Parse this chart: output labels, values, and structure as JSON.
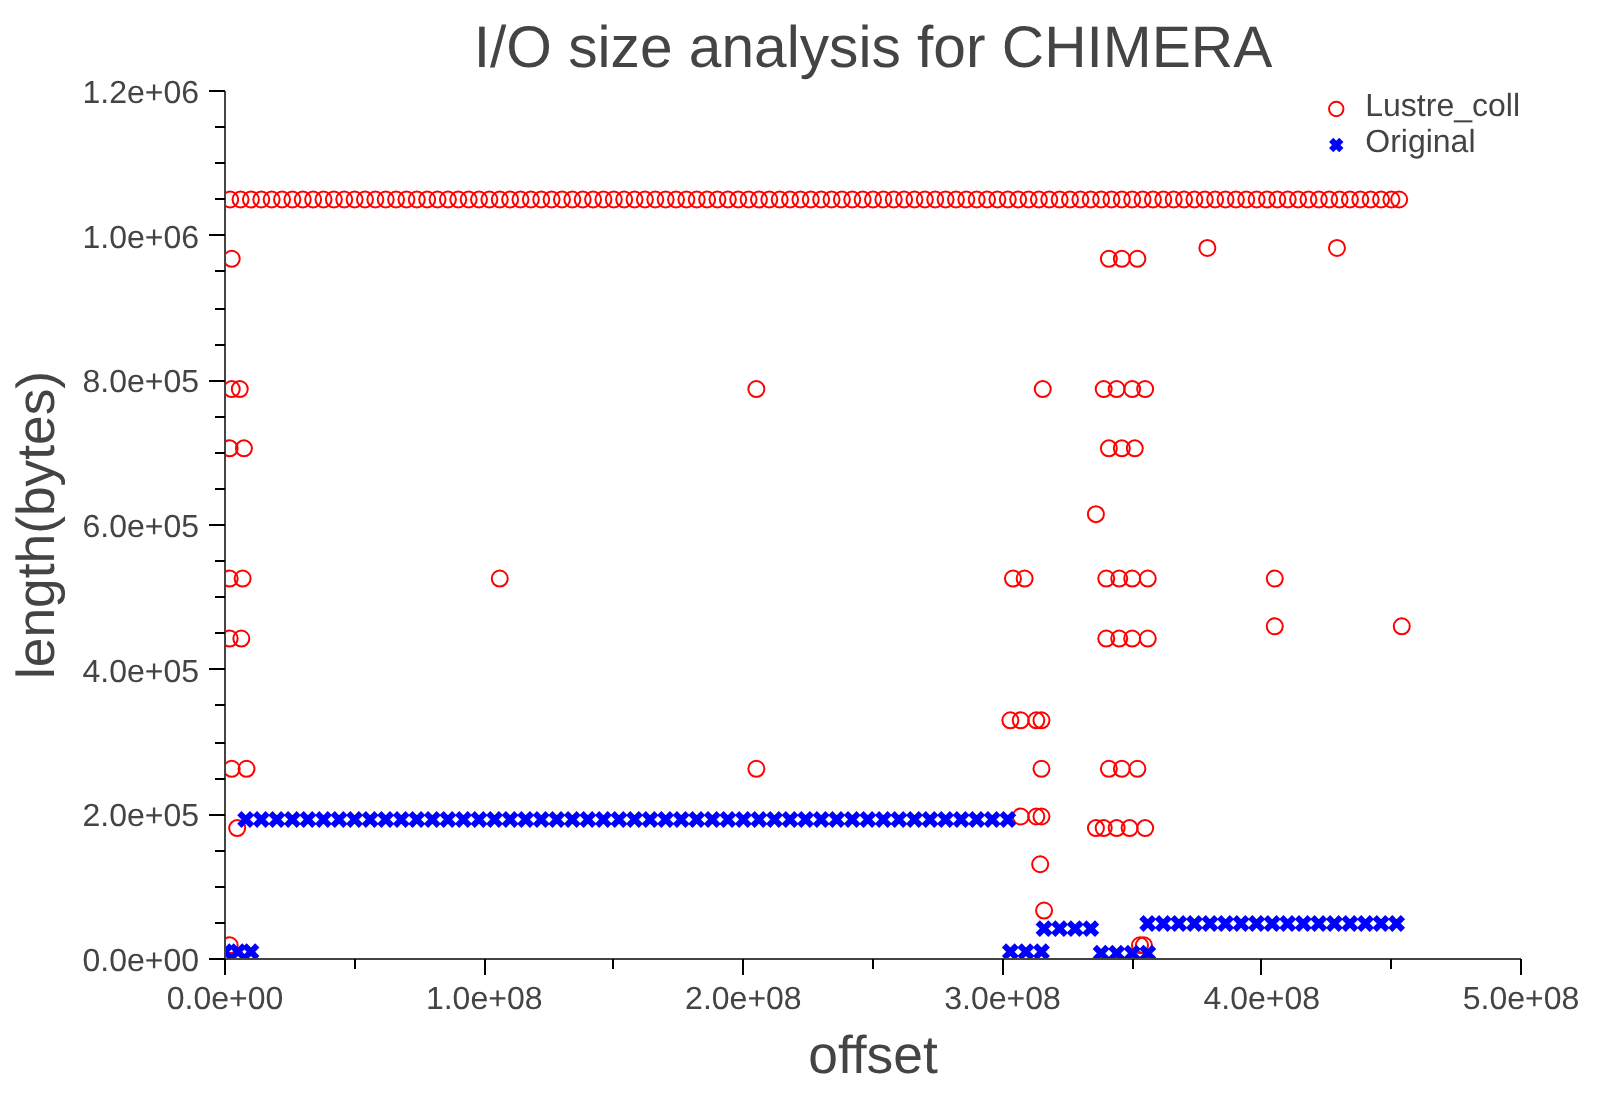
{
  "chart_data": {
    "type": "scatter",
    "title": "I/O size analysis for CHIMERA",
    "xlabel": "offset",
    "ylabel": "length(bytes)",
    "xlim": [
      0,
      500000000.0
    ],
    "ylim": [
      0,
      1200000.0
    ],
    "xticks": [
      {
        "value": 0,
        "label": "0.0e+00"
      },
      {
        "value": 50000000.0,
        "label": null
      },
      {
        "value": 100000000.0,
        "label": "1.0e+08"
      },
      {
        "value": 150000000.0,
        "label": null
      },
      {
        "value": 200000000.0,
        "label": "2.0e+08"
      },
      {
        "value": 250000000.0,
        "label": null
      },
      {
        "value": 300000000.0,
        "label": "3.0e+08"
      },
      {
        "value": 350000000.0,
        "label": null
      },
      {
        "value": 400000000.0,
        "label": "4.0e+08"
      },
      {
        "value": 450000000.0,
        "label": null
      },
      {
        "value": 500000000.0,
        "label": "5.0e+08"
      }
    ],
    "yticks": [
      {
        "value": 0,
        "label": "0.0e+00"
      },
      {
        "value": 50000.0,
        "label": null
      },
      {
        "value": 100000.0,
        "label": null
      },
      {
        "value": 150000.0,
        "label": null
      },
      {
        "value": 200000.0,
        "label": "2.0e+05"
      },
      {
        "value": 250000.0,
        "label": null
      },
      {
        "value": 300000.0,
        "label": null
      },
      {
        "value": 350000.0,
        "label": null
      },
      {
        "value": 400000.0,
        "label": "4.0e+05"
      },
      {
        "value": 450000.0,
        "label": null
      },
      {
        "value": 500000.0,
        "label": null
      },
      {
        "value": 550000.0,
        "label": null
      },
      {
        "value": 600000.0,
        "label": "6.0e+05"
      },
      {
        "value": 650000.0,
        "label": null
      },
      {
        "value": 700000.0,
        "label": null
      },
      {
        "value": 750000.0,
        "label": null
      },
      {
        "value": 800000.0,
        "label": "8.0e+05"
      },
      {
        "value": 850000.0,
        "label": null
      },
      {
        "value": 900000.0,
        "label": null
      },
      {
        "value": 950000.0,
        "label": null
      },
      {
        "value": 1000000.0,
        "label": "1.0e+06"
      },
      {
        "value": 1050000.0,
        "label": null
      },
      {
        "value": 1100000.0,
        "label": null
      },
      {
        "value": 1150000.0,
        "label": null
      },
      {
        "value": 1200000.0,
        "label": "1.2e+06"
      }
    ],
    "grid": false,
    "legend": "top right",
    "series": [
      {
        "name": "Lustre_coll",
        "color": "#ff0000",
        "marker": "circle",
        "x": [
          2000000.0,
          6000000.0,
          10000000.0,
          14000000.0,
          18000000.0,
          22000000.0,
          26000000.0,
          30000000.0,
          34000000.0,
          38000000.0,
          42000000.0,
          46000000.0,
          50000000.0,
          54000000.0,
          58000000.0,
          62000000.0,
          66000000.0,
          70000000.0,
          74000000.0,
          78000000.0,
          82000000.0,
          86000000.0,
          90000000.0,
          94000000.0,
          98000000.0,
          102000000.0,
          106000000.0,
          110000000.0,
          114000000.0,
          118000000.0,
          122000000.0,
          126000000.0,
          130000000.0,
          134000000.0,
          138000000.0,
          142000000.0,
          146000000.0,
          150000000.0,
          154000000.0,
          158000000.0,
          162000000.0,
          166000000.0,
          170000000.0,
          174000000.0,
          178000000.0,
          182000000.0,
          186000000.0,
          190000000.0,
          194000000.0,
          198000000.0,
          202000000.0,
          206000000.0,
          210000000.0,
          214000000.0,
          218000000.0,
          222000000.0,
          226000000.0,
          230000000.0,
          234000000.0,
          238000000.0,
          242000000.0,
          246000000.0,
          250000000.0,
          254000000.0,
          258000000.0,
          262000000.0,
          266000000.0,
          270000000.0,
          274000000.0,
          278000000.0,
          282000000.0,
          286000000.0,
          290000000.0,
          294000000.0,
          298000000.0,
          302000000.0,
          306000000.0,
          310000000.0,
          314000000.0,
          318000000.0,
          322000000.0,
          326000000.0,
          330000000.0,
          334000000.0,
          338000000.0,
          342000000.0,
          346000000.0,
          350000000.0,
          354000000.0,
          358000000.0,
          362000000.0,
          366000000.0,
          370000000.0,
          374000000.0,
          378000000.0,
          382000000.0,
          386000000.0,
          390000000.0,
          394000000.0,
          398000000.0,
          402000000.0,
          406000000.0,
          410000000.0,
          414000000.0,
          418000000.0,
          422000000.0,
          426000000.0,
          430000000.0,
          434000000.0,
          438000000.0,
          442000000.0,
          446000000.0,
          450000000.0,
          453000000.0,
          2600000.0,
          341000000.0,
          346000000.0,
          352000000.0,
          379000000.0,
          429000000.0,
          2600000.0,
          5700000.0,
          205000000.0,
          315500000.0,
          339000000.0,
          344000000.0,
          350000000.0,
          355000000.0,
          1800000.0,
          7300000.0,
          341000000.0,
          346000000.0,
          351000000.0,
          336000000.0,
          1800000.0,
          6800000.0,
          106000000.0,
          304000000.0,
          308500000.0,
          340000000.0,
          345000000.0,
          350000000.0,
          356000000.0,
          405000000.0,
          405000000.0,
          454000000.0,
          1800000.0,
          6300000.0,
          340000000.0,
          345000000.0,
          350000000.0,
          356000000.0,
          303000000.0,
          307000000.0,
          313000000.0,
          315000000.0,
          2600000.0,
          8300000.0,
          205000000.0,
          315000000.0,
          341000000.0,
          346000000.0,
          352000000.0,
          307000000.0,
          313000000.0,
          315000000.0,
          4700000.0,
          336000000.0,
          339000000.0,
          344000000.0,
          349000000.0,
          355000000.0,
          314500000.0,
          316000000.0,
          1800000.0,
          353000000.0,
          354500000.0
        ],
        "values": [
          1050000,
          1050000,
          1050000,
          1050000,
          1050000,
          1050000,
          1050000,
          1050000,
          1050000,
          1050000,
          1050000,
          1050000,
          1050000,
          1050000,
          1050000,
          1050000,
          1050000,
          1050000,
          1050000,
          1050000,
          1050000,
          1050000,
          1050000,
          1050000,
          1050000,
          1050000,
          1050000,
          1050000,
          1050000,
          1050000,
          1050000,
          1050000,
          1050000,
          1050000,
          1050000,
          1050000,
          1050000,
          1050000,
          1050000,
          1050000,
          1050000,
          1050000,
          1050000,
          1050000,
          1050000,
          1050000,
          1050000,
          1050000,
          1050000,
          1050000,
          1050000,
          1050000,
          1050000,
          1050000,
          1050000,
          1050000,
          1050000,
          1050000,
          1050000,
          1050000,
          1050000,
          1050000,
          1050000,
          1050000,
          1050000,
          1050000,
          1050000,
          1050000,
          1050000,
          1050000,
          1050000,
          1050000,
          1050000,
          1050000,
          1050000,
          1050000,
          1050000,
          1050000,
          1050000,
          1050000,
          1050000,
          1050000,
          1050000,
          1050000,
          1050000,
          1050000,
          1050000,
          1050000,
          1050000,
          1050000,
          1050000,
          1050000,
          1050000,
          1050000,
          1050000,
          1050000,
          1050000,
          1050000,
          1050000,
          1050000,
          1050000,
          1050000,
          1050000,
          1050000,
          1050000,
          1050000,
          1050000,
          1050000,
          1050000,
          1050000,
          1050000,
          1050000,
          1050000,
          1050000,
          968000,
          968000,
          968000,
          968000,
          983000,
          983000,
          788000,
          788000,
          788000,
          788000,
          788000,
          788000,
          788000,
          788000,
          706000,
          706000,
          706000,
          706000,
          706000,
          615000,
          526000,
          526000,
          526000,
          526000,
          526000,
          526000,
          526000,
          526000,
          526000,
          526000,
          460000,
          460000,
          443000,
          443000,
          443000,
          443000,
          443000,
          443000,
          330000,
          330000,
          330000,
          330000,
          263000,
          263000,
          263000,
          263000,
          263000,
          263000,
          263000,
          197000,
          197000,
          197000,
          181000,
          181000,
          181000,
          181000,
          181000,
          181000,
          131000,
          67000,
          19000,
          19000,
          19000
        ]
      },
      {
        "name": "Original",
        "color": "#0000ff",
        "marker": "cross",
        "x": [
          0,
          5000000.0,
          10000000.0,
          303000000.0,
          309000000.0,
          315000000.0,
          8000000.0,
          14000000.0,
          20000000.0,
          26000000.0,
          32000000.0,
          38000000.0,
          44000000.0,
          50000000.0,
          56000000.0,
          62000000.0,
          68000000.0,
          74000000.0,
          80000000.0,
          86000000.0,
          92000000.0,
          98000000.0,
          104000000.0,
          110000000.0,
          116000000.0,
          122000000.0,
          128000000.0,
          134000000.0,
          140000000.0,
          146000000.0,
          152000000.0,
          158000000.0,
          164000000.0,
          170000000.0,
          176000000.0,
          182000000.0,
          188000000.0,
          194000000.0,
          200000000.0,
          206000000.0,
          212000000.0,
          218000000.0,
          224000000.0,
          230000000.0,
          236000000.0,
          242000000.0,
          248000000.0,
          254000000.0,
          260000000.0,
          266000000.0,
          272000000.0,
          278000000.0,
          284000000.0,
          290000000.0,
          296000000.0,
          302000000.0,
          316000000.0,
          322000000.0,
          328000000.0,
          334000000.0,
          338000000.0,
          344000000.0,
          350000000.0,
          356000000.0,
          356000000.0,
          362000000.0,
          368000000.0,
          374000000.0,
          380000000.0,
          386000000.0,
          392000000.0,
          398000000.0,
          404000000.0,
          410000000.0,
          416000000.0,
          422000000.0,
          428000000.0,
          434000000.0,
          440000000.0,
          446000000.0,
          452000000.0
        ],
        "values": [
          10000,
          10000,
          10000,
          10000,
          10000,
          10000,
          193000,
          193000,
          193000,
          193000,
          193000,
          193000,
          193000,
          193000,
          193000,
          193000,
          193000,
          193000,
          193000,
          193000,
          193000,
          193000,
          193000,
          193000,
          193000,
          193000,
          193000,
          193000,
          193000,
          193000,
          193000,
          193000,
          193000,
          193000,
          193000,
          193000,
          193000,
          193000,
          193000,
          193000,
          193000,
          193000,
          193000,
          193000,
          193000,
          193000,
          193000,
          193000,
          193000,
          193000,
          193000,
          193000,
          193000,
          193000,
          193000,
          193000,
          42000,
          42000,
          42000,
          42000,
          8000,
          8000,
          8000,
          8000,
          49000,
          49000,
          49000,
          49000,
          49000,
          49000,
          49000,
          49000,
          49000,
          49000,
          49000,
          49000,
          49000,
          49000,
          49000,
          49000,
          49000
        ]
      }
    ]
  }
}
